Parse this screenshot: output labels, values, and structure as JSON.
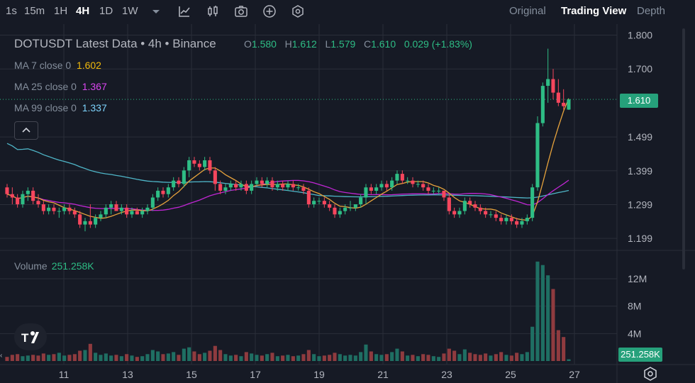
{
  "toolbar": {
    "timeframes": [
      "1s",
      "15m",
      "1H",
      "4H",
      "1D",
      "1W"
    ],
    "active_timeframe": "4H",
    "views": [
      "Original",
      "Trading View",
      "Depth"
    ],
    "active_view": "Trading View"
  },
  "legend": {
    "title": "DOTUSDT Latest Data • 4h • Binance",
    "ohlc": [
      {
        "k": "O",
        "v": "1.580"
      },
      {
        "k": "H",
        "v": "1.612"
      },
      {
        "k": "L",
        "v": "1.579"
      },
      {
        "k": "C",
        "v": "1.610"
      }
    ],
    "change": "0.029 (+1.83%)",
    "ma": [
      {
        "label": "MA 7 close 0",
        "value": "1.602",
        "color": "#f0b90b"
      },
      {
        "label": "MA 25 close 0",
        "value": "1.367",
        "color": "#d946ef"
      },
      {
        "label": "MA 99 close 0",
        "value": "1.337",
        "color": "#7dd3fc"
      }
    ]
  },
  "volume": {
    "label": "Volume",
    "value": "251.258K"
  },
  "price_badge": "1.610",
  "volume_badge": "251.258K",
  "colors": {
    "up": "#2ebd85",
    "down": "#f6465d",
    "ma7": "#e6a23c",
    "ma25": "#c026d3",
    "ma99": "#4fb6c8",
    "grid": "#2a2e39"
  },
  "chart_data": {
    "type": "candlestick",
    "price_axis_ticks": [
      "1.800",
      "1.700",
      "1.610",
      "1.499",
      "1.399",
      "1.299",
      "1.199"
    ],
    "volume_axis_ticks": [
      "12M",
      "8M",
      "4M"
    ],
    "x_ticks": [
      "11",
      "13",
      "15",
      "17",
      "19",
      "21",
      "23",
      "25",
      "27"
    ],
    "price_range": [
      1.17,
      1.82
    ],
    "volume_range": [
      0,
      15
    ],
    "candles": [
      {
        "o": 1.35,
        "h": 1.36,
        "l": 1.32,
        "c": 1.33,
        "v": 0.6
      },
      {
        "o": 1.33,
        "h": 1.35,
        "l": 1.3,
        "c": 1.32,
        "v": 0.9
      },
      {
        "o": 1.32,
        "h": 1.33,
        "l": 1.29,
        "c": 1.3,
        "v": 1.0
      },
      {
        "o": 1.3,
        "h": 1.34,
        "l": 1.29,
        "c": 1.33,
        "v": 0.7
      },
      {
        "o": 1.33,
        "h": 1.35,
        "l": 1.31,
        "c": 1.34,
        "v": 0.8
      },
      {
        "o": 1.34,
        "h": 1.35,
        "l": 1.3,
        "c": 1.31,
        "v": 0.9
      },
      {
        "o": 1.31,
        "h": 1.33,
        "l": 1.29,
        "c": 1.3,
        "v": 0.8
      },
      {
        "o": 1.3,
        "h": 1.31,
        "l": 1.27,
        "c": 1.28,
        "v": 1.1
      },
      {
        "o": 1.28,
        "h": 1.3,
        "l": 1.27,
        "c": 1.29,
        "v": 0.9
      },
      {
        "o": 1.29,
        "h": 1.3,
        "l": 1.27,
        "c": 1.28,
        "v": 1.0
      },
      {
        "o": 1.28,
        "h": 1.29,
        "l": 1.26,
        "c": 1.28,
        "v": 1.2
      },
      {
        "o": 1.28,
        "h": 1.3,
        "l": 1.27,
        "c": 1.29,
        "v": 0.8
      },
      {
        "o": 1.29,
        "h": 1.3,
        "l": 1.27,
        "c": 1.28,
        "v": 0.9
      },
      {
        "o": 1.28,
        "h": 1.29,
        "l": 1.26,
        "c": 1.27,
        "v": 1.0
      },
      {
        "o": 1.27,
        "h": 1.28,
        "l": 1.23,
        "c": 1.24,
        "v": 1.5
      },
      {
        "o": 1.24,
        "h": 1.26,
        "l": 1.22,
        "c": 1.25,
        "v": 1.6
      },
      {
        "o": 1.25,
        "h": 1.3,
        "l": 1.23,
        "c": 1.24,
        "v": 2.5
      },
      {
        "o": 1.24,
        "h": 1.27,
        "l": 1.23,
        "c": 1.26,
        "v": 1.2
      },
      {
        "o": 1.26,
        "h": 1.28,
        "l": 1.25,
        "c": 1.27,
        "v": 0.9
      },
      {
        "o": 1.27,
        "h": 1.3,
        "l": 1.26,
        "c": 1.29,
        "v": 1.1
      },
      {
        "o": 1.29,
        "h": 1.31,
        "l": 1.27,
        "c": 1.3,
        "v": 0.8
      },
      {
        "o": 1.3,
        "h": 1.31,
        "l": 1.28,
        "c": 1.28,
        "v": 0.9
      },
      {
        "o": 1.28,
        "h": 1.3,
        "l": 1.27,
        "c": 1.29,
        "v": 0.7
      },
      {
        "o": 1.29,
        "h": 1.3,
        "l": 1.26,
        "c": 1.27,
        "v": 1.0
      },
      {
        "o": 1.27,
        "h": 1.29,
        "l": 1.26,
        "c": 1.28,
        "v": 0.8
      },
      {
        "o": 1.28,
        "h": 1.29,
        "l": 1.27,
        "c": 1.27,
        "v": 0.6
      },
      {
        "o": 1.27,
        "h": 1.29,
        "l": 1.26,
        "c": 1.28,
        "v": 0.7
      },
      {
        "o": 1.28,
        "h": 1.3,
        "l": 1.27,
        "c": 1.29,
        "v": 1.0
      },
      {
        "o": 1.29,
        "h": 1.33,
        "l": 1.28,
        "c": 1.32,
        "v": 1.6
      },
      {
        "o": 1.32,
        "h": 1.35,
        "l": 1.31,
        "c": 1.34,
        "v": 1.4
      },
      {
        "o": 1.34,
        "h": 1.35,
        "l": 1.32,
        "c": 1.33,
        "v": 1.0
      },
      {
        "o": 1.33,
        "h": 1.36,
        "l": 1.32,
        "c": 1.35,
        "v": 1.1
      },
      {
        "o": 1.35,
        "h": 1.38,
        "l": 1.34,
        "c": 1.37,
        "v": 1.3
      },
      {
        "o": 1.37,
        "h": 1.38,
        "l": 1.35,
        "c": 1.36,
        "v": 0.9
      },
      {
        "o": 1.36,
        "h": 1.41,
        "l": 1.35,
        "c": 1.4,
        "v": 1.8
      },
      {
        "o": 1.4,
        "h": 1.44,
        "l": 1.38,
        "c": 1.43,
        "v": 2.0
      },
      {
        "o": 1.43,
        "h": 1.44,
        "l": 1.41,
        "c": 1.42,
        "v": 1.4
      },
      {
        "o": 1.42,
        "h": 1.43,
        "l": 1.4,
        "c": 1.41,
        "v": 1.0
      },
      {
        "o": 1.41,
        "h": 1.44,
        "l": 1.4,
        "c": 1.43,
        "v": 1.2
      },
      {
        "o": 1.43,
        "h": 1.44,
        "l": 1.39,
        "c": 1.4,
        "v": 1.5
      },
      {
        "o": 1.4,
        "h": 1.41,
        "l": 1.34,
        "c": 1.36,
        "v": 2.2
      },
      {
        "o": 1.36,
        "h": 1.37,
        "l": 1.33,
        "c": 1.34,
        "v": 1.6
      },
      {
        "o": 1.34,
        "h": 1.36,
        "l": 1.33,
        "c": 1.35,
        "v": 1.0
      },
      {
        "o": 1.35,
        "h": 1.37,
        "l": 1.34,
        "c": 1.36,
        "v": 0.8
      },
      {
        "o": 1.36,
        "h": 1.37,
        "l": 1.34,
        "c": 1.35,
        "v": 0.9
      },
      {
        "o": 1.35,
        "h": 1.37,
        "l": 1.34,
        "c": 1.36,
        "v": 0.7
      },
      {
        "o": 1.36,
        "h": 1.37,
        "l": 1.33,
        "c": 1.34,
        "v": 1.3
      },
      {
        "o": 1.34,
        "h": 1.37,
        "l": 1.33,
        "c": 1.36,
        "v": 1.1
      },
      {
        "o": 1.36,
        "h": 1.38,
        "l": 1.35,
        "c": 1.37,
        "v": 0.9
      },
      {
        "o": 1.37,
        "h": 1.38,
        "l": 1.35,
        "c": 1.36,
        "v": 0.8
      },
      {
        "o": 1.36,
        "h": 1.38,
        "l": 1.35,
        "c": 1.37,
        "v": 1.0
      },
      {
        "o": 1.37,
        "h": 1.38,
        "l": 1.34,
        "c": 1.35,
        "v": 1.2
      },
      {
        "o": 1.35,
        "h": 1.37,
        "l": 1.34,
        "c": 1.36,
        "v": 0.7
      },
      {
        "o": 1.36,
        "h": 1.37,
        "l": 1.34,
        "c": 1.35,
        "v": 0.8
      },
      {
        "o": 1.35,
        "h": 1.37,
        "l": 1.34,
        "c": 1.36,
        "v": 0.9
      },
      {
        "o": 1.36,
        "h": 1.37,
        "l": 1.34,
        "c": 1.35,
        "v": 0.7
      },
      {
        "o": 1.35,
        "h": 1.36,
        "l": 1.34,
        "c": 1.35,
        "v": 0.8
      },
      {
        "o": 1.35,
        "h": 1.36,
        "l": 1.33,
        "c": 1.34,
        "v": 1.0
      },
      {
        "o": 1.34,
        "h": 1.35,
        "l": 1.29,
        "c": 1.3,
        "v": 1.6
      },
      {
        "o": 1.3,
        "h": 1.32,
        "l": 1.29,
        "c": 1.31,
        "v": 1.0
      },
      {
        "o": 1.31,
        "h": 1.32,
        "l": 1.3,
        "c": 1.31,
        "v": 0.7
      },
      {
        "o": 1.31,
        "h": 1.32,
        "l": 1.29,
        "c": 1.3,
        "v": 0.8
      },
      {
        "o": 1.3,
        "h": 1.31,
        "l": 1.28,
        "c": 1.29,
        "v": 0.9
      },
      {
        "o": 1.29,
        "h": 1.3,
        "l": 1.26,
        "c": 1.27,
        "v": 1.2
      },
      {
        "o": 1.27,
        "h": 1.29,
        "l": 1.26,
        "c": 1.28,
        "v": 1.0
      },
      {
        "o": 1.28,
        "h": 1.3,
        "l": 1.27,
        "c": 1.29,
        "v": 0.8
      },
      {
        "o": 1.29,
        "h": 1.31,
        "l": 1.28,
        "c": 1.29,
        "v": 0.9
      },
      {
        "o": 1.29,
        "h": 1.3,
        "l": 1.28,
        "c": 1.3,
        "v": 0.8
      },
      {
        "o": 1.3,
        "h": 1.33,
        "l": 1.29,
        "c": 1.32,
        "v": 1.3
      },
      {
        "o": 1.32,
        "h": 1.36,
        "l": 1.3,
        "c": 1.35,
        "v": 2.4
      },
      {
        "o": 1.35,
        "h": 1.36,
        "l": 1.33,
        "c": 1.34,
        "v": 1.4
      },
      {
        "o": 1.34,
        "h": 1.36,
        "l": 1.33,
        "c": 1.35,
        "v": 1.0
      },
      {
        "o": 1.35,
        "h": 1.37,
        "l": 1.34,
        "c": 1.36,
        "v": 0.9
      },
      {
        "o": 1.36,
        "h": 1.37,
        "l": 1.34,
        "c": 1.35,
        "v": 1.0
      },
      {
        "o": 1.35,
        "h": 1.38,
        "l": 1.34,
        "c": 1.37,
        "v": 1.3
      },
      {
        "o": 1.37,
        "h": 1.4,
        "l": 1.36,
        "c": 1.39,
        "v": 1.8
      },
      {
        "o": 1.39,
        "h": 1.4,
        "l": 1.36,
        "c": 1.37,
        "v": 1.4
      },
      {
        "o": 1.37,
        "h": 1.38,
        "l": 1.36,
        "c": 1.37,
        "v": 0.8
      },
      {
        "o": 1.37,
        "h": 1.38,
        "l": 1.35,
        "c": 1.36,
        "v": 0.9
      },
      {
        "o": 1.36,
        "h": 1.37,
        "l": 1.35,
        "c": 1.36,
        "v": 0.7
      },
      {
        "o": 1.36,
        "h": 1.37,
        "l": 1.34,
        "c": 1.35,
        "v": 1.0
      },
      {
        "o": 1.35,
        "h": 1.36,
        "l": 1.33,
        "c": 1.34,
        "v": 0.9
      },
      {
        "o": 1.34,
        "h": 1.35,
        "l": 1.33,
        "c": 1.34,
        "v": 0.7
      },
      {
        "o": 1.34,
        "h": 1.35,
        "l": 1.33,
        "c": 1.34,
        "v": 0.6
      },
      {
        "o": 1.34,
        "h": 1.34,
        "l": 1.31,
        "c": 1.32,
        "v": 1.1
      },
      {
        "o": 1.32,
        "h": 1.33,
        "l": 1.27,
        "c": 1.28,
        "v": 1.8
      },
      {
        "o": 1.28,
        "h": 1.29,
        "l": 1.26,
        "c": 1.27,
        "v": 1.5
      },
      {
        "o": 1.27,
        "h": 1.29,
        "l": 1.26,
        "c": 1.28,
        "v": 1.0
      },
      {
        "o": 1.28,
        "h": 1.32,
        "l": 1.27,
        "c": 1.31,
        "v": 1.7
      },
      {
        "o": 1.31,
        "h": 1.32,
        "l": 1.29,
        "c": 1.3,
        "v": 1.2
      },
      {
        "o": 1.3,
        "h": 1.31,
        "l": 1.28,
        "c": 1.29,
        "v": 1.0
      },
      {
        "o": 1.29,
        "h": 1.3,
        "l": 1.27,
        "c": 1.28,
        "v": 0.9
      },
      {
        "o": 1.28,
        "h": 1.29,
        "l": 1.26,
        "c": 1.27,
        "v": 1.1
      },
      {
        "o": 1.27,
        "h": 1.28,
        "l": 1.26,
        "c": 1.27,
        "v": 0.8
      },
      {
        "o": 1.27,
        "h": 1.28,
        "l": 1.25,
        "c": 1.26,
        "v": 1.0
      },
      {
        "o": 1.26,
        "h": 1.27,
        "l": 1.24,
        "c": 1.25,
        "v": 1.3
      },
      {
        "o": 1.25,
        "h": 1.27,
        "l": 1.24,
        "c": 1.26,
        "v": 0.9
      },
      {
        "o": 1.26,
        "h": 1.27,
        "l": 1.24,
        "c": 1.25,
        "v": 0.8
      },
      {
        "o": 1.25,
        "h": 1.26,
        "l": 1.23,
        "c": 1.24,
        "v": 1.2
      },
      {
        "o": 1.24,
        "h": 1.26,
        "l": 1.23,
        "c": 1.25,
        "v": 1.0
      },
      {
        "o": 1.25,
        "h": 1.27,
        "l": 1.24,
        "c": 1.26,
        "v": 1.3
      },
      {
        "o": 1.26,
        "h": 1.36,
        "l": 1.25,
        "c": 1.35,
        "v": 5.0
      },
      {
        "o": 1.35,
        "h": 1.56,
        "l": 1.34,
        "c": 1.54,
        "v": 14.5
      },
      {
        "o": 1.54,
        "h": 1.66,
        "l": 1.53,
        "c": 1.65,
        "v": 14.0
      },
      {
        "o": 1.65,
        "h": 1.76,
        "l": 1.6,
        "c": 1.67,
        "v": 12.5
      },
      {
        "o": 1.67,
        "h": 1.7,
        "l": 1.61,
        "c": 1.63,
        "v": 10.5
      },
      {
        "o": 1.63,
        "h": 1.67,
        "l": 1.59,
        "c": 1.6,
        "v": 4.5
      },
      {
        "o": 1.6,
        "h": 1.64,
        "l": 1.58,
        "c": 1.59,
        "v": 3.5
      },
      {
        "o": 1.58,
        "h": 1.612,
        "l": 1.579,
        "c": 1.61,
        "v": 0.25
      }
    ]
  }
}
